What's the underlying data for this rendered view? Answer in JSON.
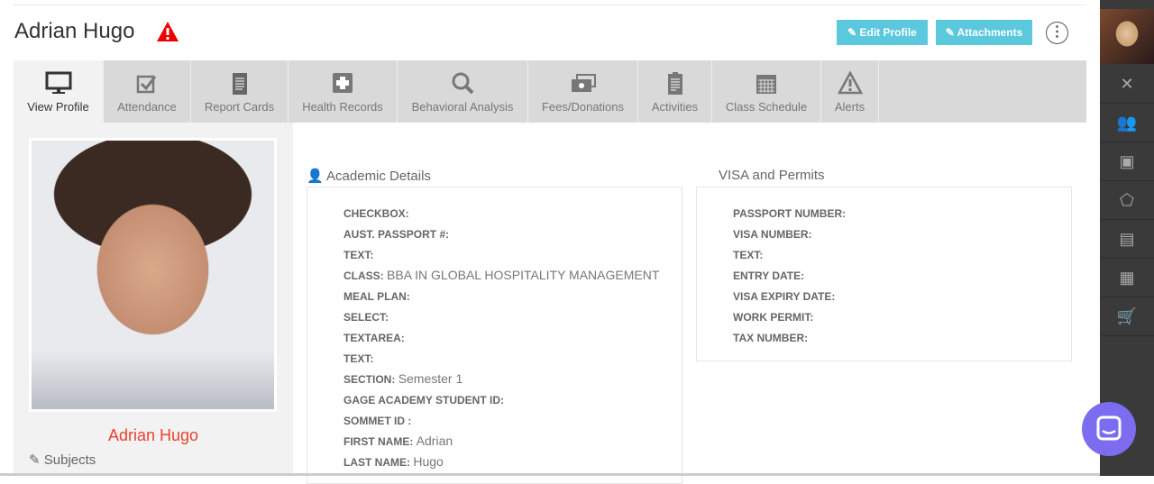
{
  "header": {
    "title": "Adrian Hugo",
    "edit_label": "✎ Edit Profile",
    "attachments_label": "✎ Attachments",
    "more": "⋮"
  },
  "tabs": [
    {
      "label": "View Profile",
      "icon": "monitor-icon",
      "active": true
    },
    {
      "label": "Attendance",
      "icon": "checkbox-icon"
    },
    {
      "label": "Report Cards",
      "icon": "report-icon"
    },
    {
      "label": "Health Records",
      "icon": "medical-cross-icon"
    },
    {
      "label": "Behavioral Analysis",
      "icon": "search-icon"
    },
    {
      "label": "Fees/Donations",
      "icon": "money-icon"
    },
    {
      "label": "Activities",
      "icon": "clipboard-icon"
    },
    {
      "label": "Class Schedule",
      "icon": "calendar-icon"
    },
    {
      "label": "Alerts",
      "icon": "warning-icon"
    }
  ],
  "profile": {
    "name": "Adrian Hugo",
    "subjects_label": "Subjects"
  },
  "academic": {
    "title": "Academic Details",
    "rows": [
      {
        "label": "CHECKBOX:",
        "value": ""
      },
      {
        "label": "AUST. PASSPORT #:",
        "value": ""
      },
      {
        "label": "TEXT:",
        "value": ""
      },
      {
        "label": "CLASS:",
        "value": "BBA IN GLOBAL HOSPITALITY MANAGEMENT"
      },
      {
        "label": "MEAL PLAN:",
        "value": ""
      },
      {
        "label": "SELECT:",
        "value": ""
      },
      {
        "label": "TEXTAREA:",
        "value": ""
      },
      {
        "label": "TEXT:",
        "value": ""
      },
      {
        "label": "SECTION:",
        "value": "Semester 1"
      },
      {
        "label": "GAGE ACADEMY STUDENT ID:",
        "value": ""
      },
      {
        "label": "SOMMET ID :",
        "value": ""
      },
      {
        "label": "FIRST NAME:",
        "value": "Adrian"
      },
      {
        "label": "LAST NAME:",
        "value": "Hugo"
      }
    ]
  },
  "visa": {
    "title": "VISA and Permits",
    "rows": [
      {
        "label": "PASSPORT NUMBER:",
        "value": ""
      },
      {
        "label": "VISA NUMBER:",
        "value": ""
      },
      {
        "label": "TEXT:",
        "value": ""
      },
      {
        "label": "ENTRY DATE:",
        "value": ""
      },
      {
        "label": "VISA EXPIRY DATE:",
        "value": ""
      },
      {
        "label": "WORK PERMIT:",
        "value": ""
      },
      {
        "label": "TAX NUMBER:",
        "value": ""
      }
    ]
  },
  "sidebar": {
    "icons": [
      "tools-icon",
      "users-icon",
      "id-card-icon",
      "pentagon-icon",
      "money-icon",
      "calculator-icon",
      "cart-icon"
    ]
  },
  "colors": {
    "accent": "#5bc8de",
    "name": "#e8412f",
    "chat": "#7b6cf0",
    "sidebar": "#3a3a3a"
  }
}
